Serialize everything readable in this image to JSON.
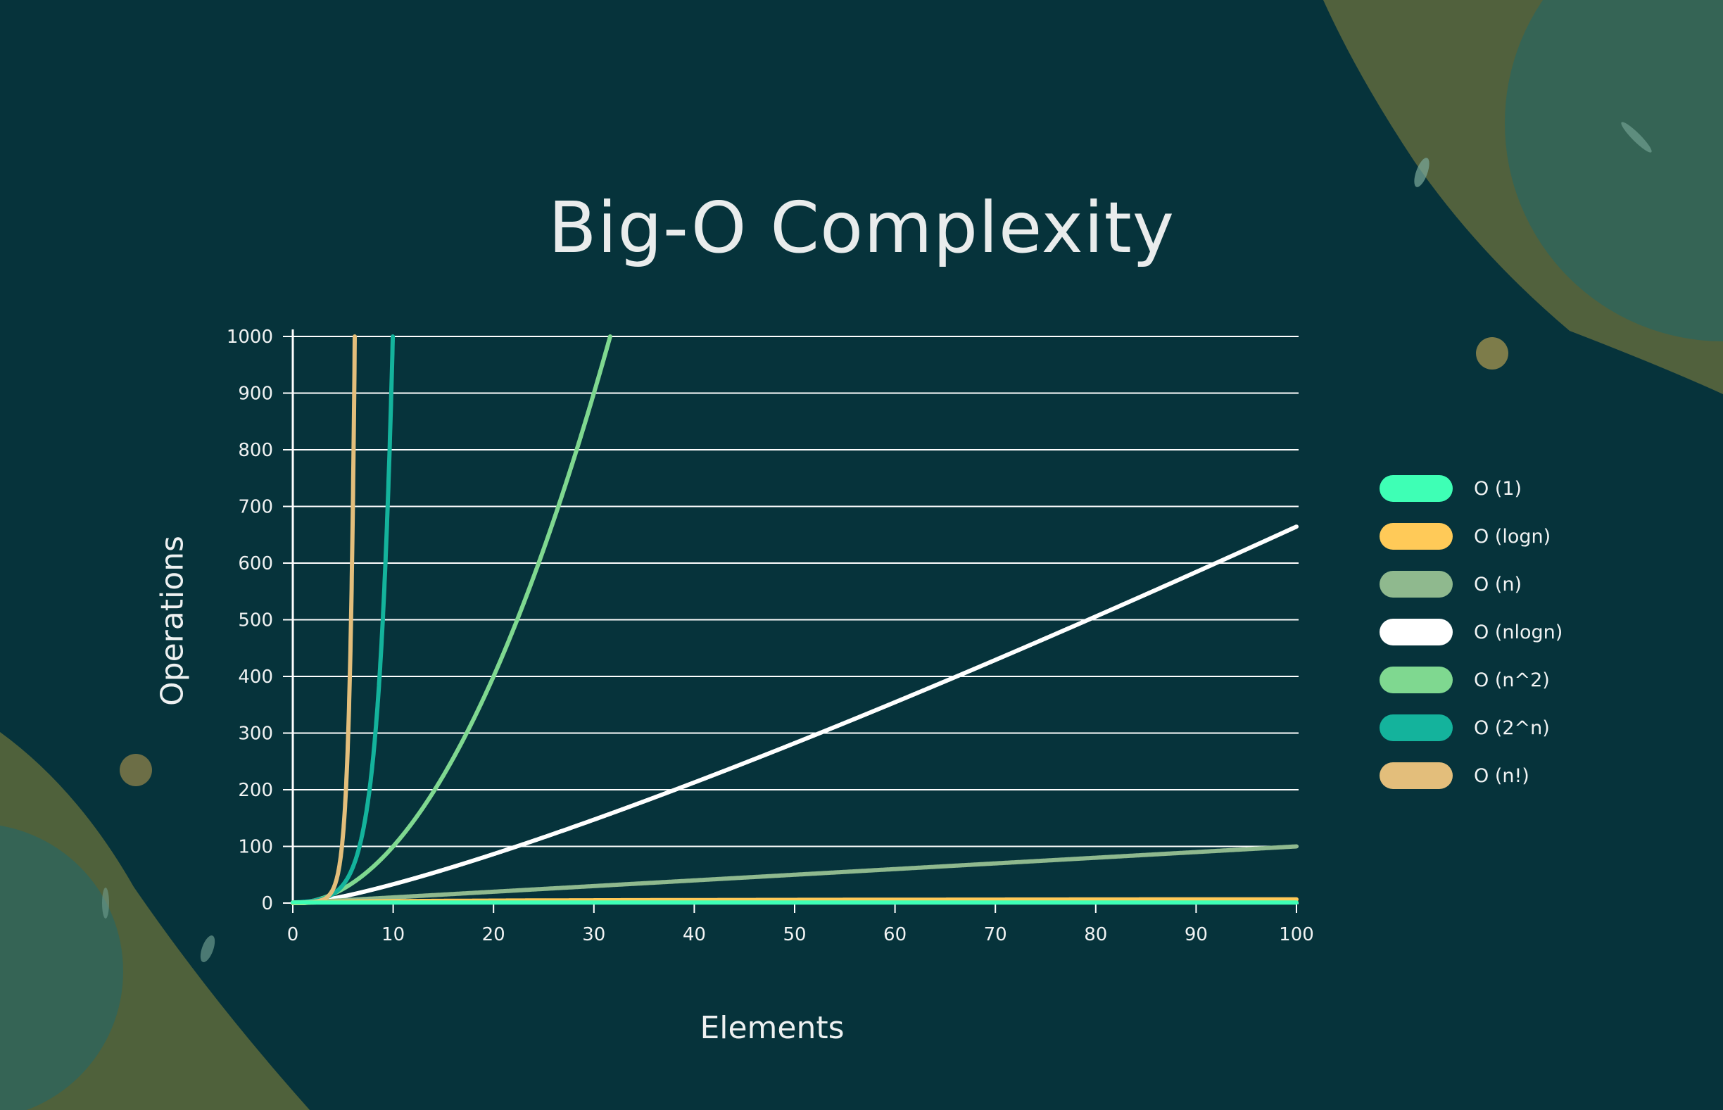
{
  "chart_data": {
    "type": "line",
    "title": "Big-O Complexity",
    "xlabel": "Elements",
    "ylabel": "Operations",
    "xlim": [
      0,
      100
    ],
    "ylim": [
      0,
      1000
    ],
    "x_ticks": [
      "0",
      "10",
      "20",
      "30",
      "40",
      "50",
      "60",
      "70",
      "80",
      "90",
      "100"
    ],
    "y_ticks": [
      "0",
      "100",
      "200",
      "300",
      "400",
      "500",
      "600",
      "700",
      "800",
      "900",
      "1000"
    ],
    "grid": "horizontal",
    "legend_position": "right",
    "series": [
      {
        "name": "O (1)",
        "color": "#3effb5",
        "function": "1",
        "x": [
          0,
          100
        ],
        "y": [
          1,
          1
        ]
      },
      {
        "name": "O (logn)",
        "color": "#ffca58",
        "function": "log2(n)",
        "x": [
          1,
          10,
          25,
          50,
          75,
          100
        ],
        "y": [
          0,
          3.3,
          4.6,
          5.6,
          6.2,
          6.6
        ]
      },
      {
        "name": "O (n)",
        "color": "#8fb98e",
        "function": "n",
        "x": [
          0,
          100
        ],
        "y": [
          0,
          100
        ]
      },
      {
        "name": "O (nlogn)",
        "color": "#ffffff",
        "function": "n*log2(n)",
        "x": [
          1,
          5,
          10,
          20,
          40,
          60,
          80,
          100
        ],
        "y": [
          0,
          11.6,
          33.2,
          86.4,
          212.9,
          354.4,
          505.8,
          664.4
        ]
      },
      {
        "name": "O (n^2)",
        "color": "#7fd890",
        "function": "n^2",
        "x": [
          0,
          5,
          10,
          15,
          20,
          25,
          31.6
        ],
        "y": [
          0,
          25,
          100,
          225,
          400,
          625,
          1000
        ]
      },
      {
        "name": "O (2^n)",
        "color": "#14b39c",
        "function": "2^n",
        "x": [
          0,
          2,
          4,
          6,
          8,
          9,
          9.97
        ],
        "y": [
          1,
          4,
          16,
          64,
          256,
          512,
          1000
        ]
      },
      {
        "name": "O (n!)",
        "color": "#e3be7b",
        "function": "n!",
        "x": [
          0,
          2,
          3,
          4,
          5,
          6,
          6.3
        ],
        "y": [
          1,
          2,
          6,
          24,
          120,
          720,
          1000
        ]
      }
    ]
  }
}
